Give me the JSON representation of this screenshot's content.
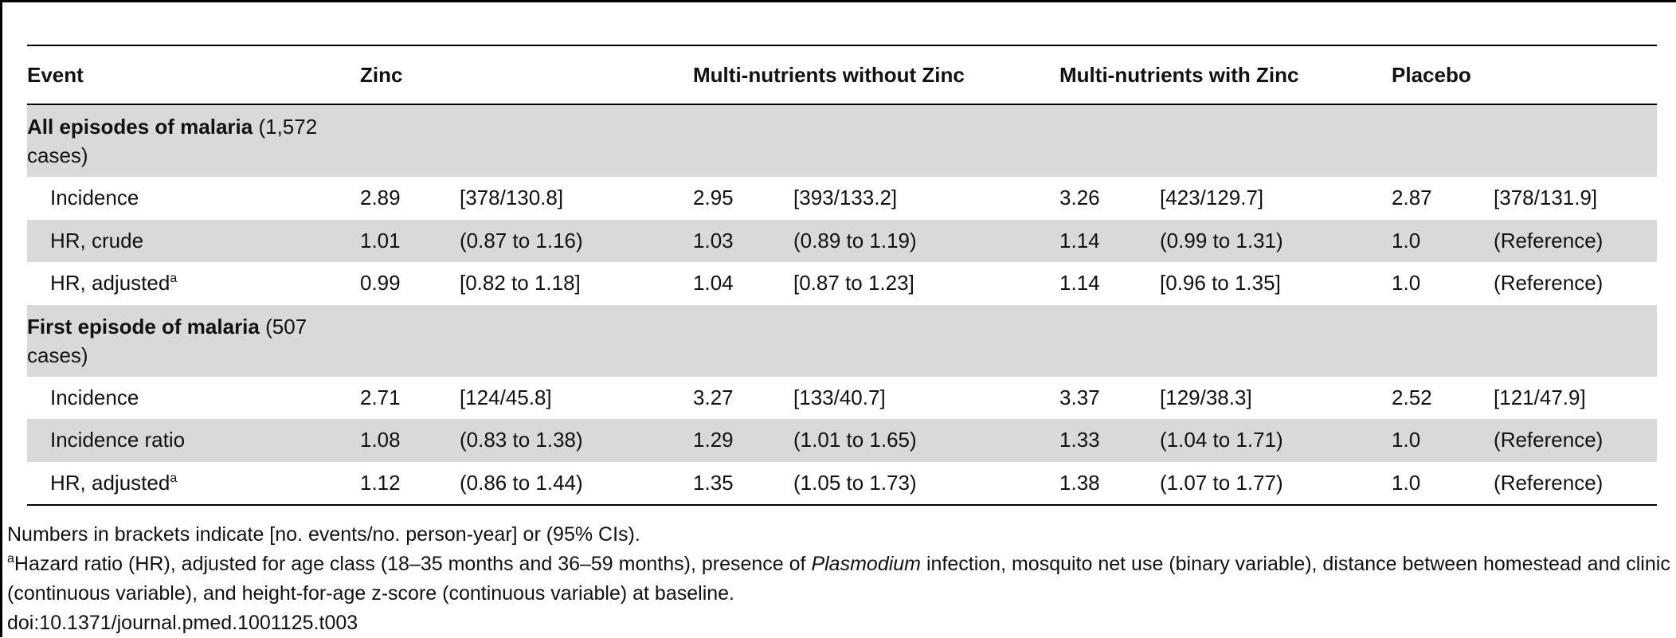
{
  "table": {
    "header": [
      "Event",
      "Zinc",
      "Multi-nutrients without Zinc",
      "Multi-nutrients with Zinc",
      "Placebo"
    ],
    "sections": [
      {
        "title": "All episodes of malaria",
        "count": "(1,572 cases)",
        "rows": [
          {
            "label": "Incidence",
            "cells": [
              "2.89",
              "[378/130.8]",
              "2.95",
              "[393/133.2]",
              "3.26",
              "[423/129.7]",
              "2.87",
              "[378/131.9]"
            ]
          },
          {
            "label": "HR, crude",
            "cells": [
              "1.01",
              "(0.87 to 1.16)",
              "1.03",
              "(0.89 to 1.19)",
              "1.14",
              "(0.99 to 1.31)",
              "1.0",
              "(Reference)"
            ]
          },
          {
            "label": "HR, adjusted",
            "sup": "a",
            "cells": [
              "0.99",
              "[0.82 to 1.18]",
              "1.04",
              "[0.87 to 1.23]",
              "1.14",
              "[0.96 to 1.35]",
              "1.0",
              "(Reference)"
            ]
          }
        ]
      },
      {
        "title": "First episode of malaria",
        "count": "(507 cases)",
        "rows": [
          {
            "label": "Incidence",
            "cells": [
              "2.71",
              "[124/45.8]",
              "3.27",
              "[133/40.7]",
              "3.37",
              "[129/38.3]",
              "2.52",
              "[121/47.9]"
            ]
          },
          {
            "label": "Incidence ratio",
            "cells": [
              "1.08",
              "(0.83 to 1.38)",
              "1.29",
              "(1.01 to 1.65)",
              "1.33",
              "(1.04 to 1.71)",
              "1.0",
              "(Reference)"
            ]
          },
          {
            "label": "HR, adjusted",
            "sup": "a",
            "cells": [
              "1.12",
              "(0.86 to 1.44)",
              "1.35",
              "(1.05 to 1.73)",
              "1.38",
              "(1.07 to 1.77)",
              "1.0",
              "(Reference)"
            ]
          }
        ]
      }
    ]
  },
  "footnotes": {
    "note": "Numbers in brackets indicate [no. events/no. person-year] or (95% CIs).",
    "marker": "a",
    "text_before": "Hazard ratio (HR), adjusted for age class (18–35 months and 36–59 months), presence of ",
    "italic": "Plasmodium",
    "text_after": " infection, mosquito net use (binary variable), distance between homestead and clinic (continuous variable), and height-for-age z-score (continuous variable) at baseline.",
    "doi": "doi:10.1371/journal.pmed.1001125.t003"
  }
}
